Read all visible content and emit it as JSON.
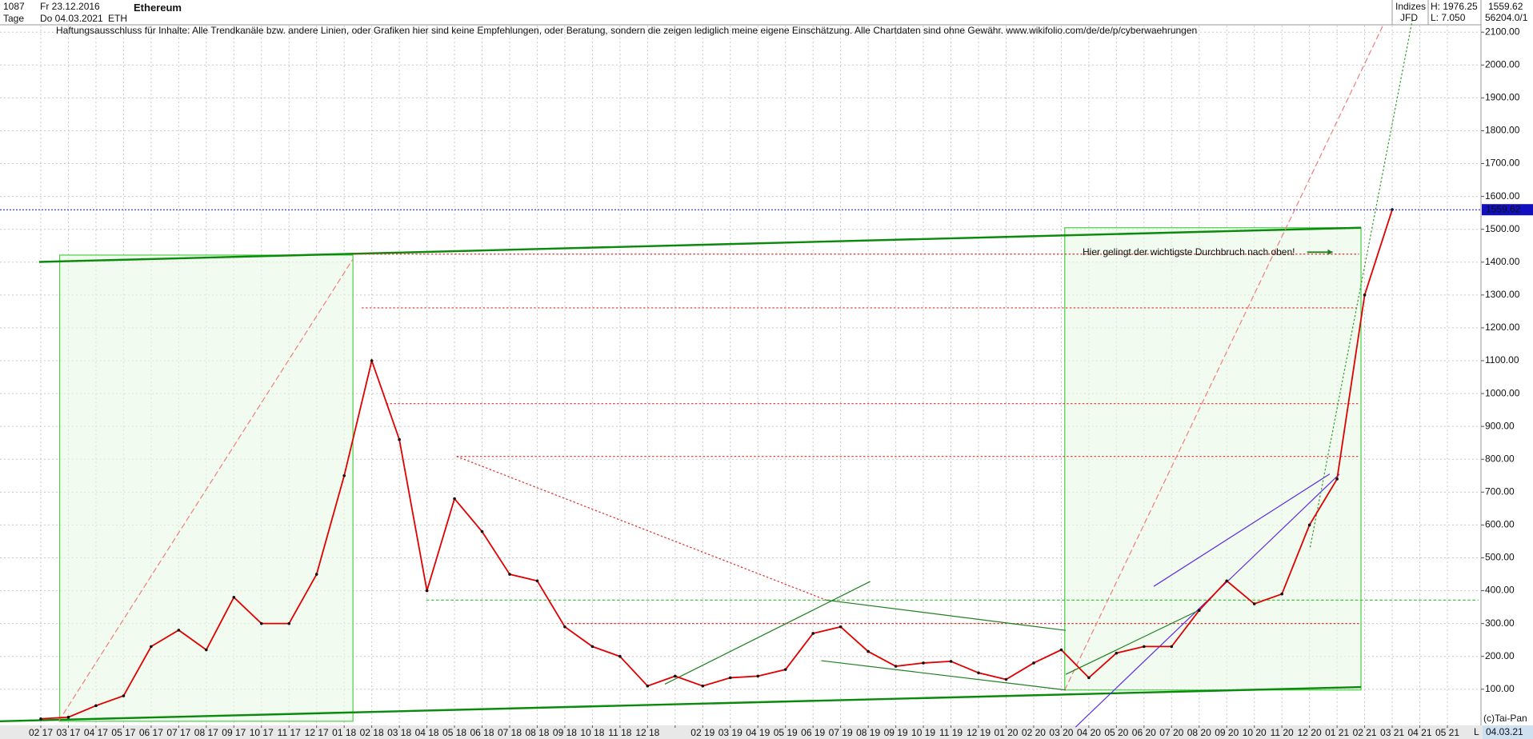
{
  "header": {
    "bars": "1087",
    "start_date": "Fr 23.12.2016",
    "timeframe": "Tage",
    "end_date": "Do 04.03.2021",
    "symbol": "ETH",
    "source": "Indizes",
    "broker": "JFD",
    "high": "H: 1976.25",
    "low": "L: 7.050",
    "last": "1559.62",
    "volume": "56204.0/1",
    "disclaimer": "Haftungsausschluss für Inhalte: Alle Trendkanäle bzw. andere Linien, oder Grafiken hier sind keine Empfehlungen, oder Beratung, sondern die zeigen lediglich meine eigene Einschätzung. Alle Chartdaten sind ohne Gewähr.  www.wikifolio.com/de/de/p/cyberwaehrungen"
  },
  "chart_data": {
    "type": "line",
    "title": "Ethereum",
    "categories": [
      "02 17",
      "03 17",
      "04 17",
      "05 17",
      "06 17",
      "07 17",
      "08 17",
      "09 17",
      "10 17",
      "11 17",
      "12 17",
      "01 18",
      "02 18",
      "03 18",
      "04 18",
      "05 18",
      "06 18",
      "07 18",
      "08 18",
      "09 18",
      "10 18",
      "11 18",
      "12 18",
      null,
      "02 19",
      "03 19",
      "04 19",
      "05 19",
      "06 19",
      "07 19",
      "08 19",
      "09 19",
      "10 19",
      "11 19",
      "12 19",
      "01 20",
      "02 20",
      "03 20",
      "04 20",
      "05 20",
      "06 20",
      "07 20",
      "08 20",
      "09 20",
      "10 20",
      "11 20",
      "12 20",
      "01 21",
      "02 21",
      "03 21",
      "04 21",
      "05 21"
    ],
    "values": [
      10,
      15,
      50,
      80,
      230,
      280,
      220,
      380,
      300,
      300,
      450,
      750,
      1100,
      860,
      400,
      680,
      580,
      450,
      430,
      290,
      230,
      200,
      110,
      140,
      110,
      135,
      140,
      160,
      270,
      290,
      215,
      170,
      180,
      185,
      150,
      130,
      180,
      220,
      135,
      210,
      230,
      230,
      340,
      430,
      360,
      390,
      600,
      740,
      1300,
      1560,
      null,
      null
    ],
    "color": "#e00000",
    "ylim": [
      -10,
      2120
    ],
    "yticks": [
      {
        "value": 100,
        "label": "100.00"
      },
      {
        "value": 200,
        "label": "200.00"
      },
      {
        "value": 300,
        "label": "300.00"
      },
      {
        "value": 400,
        "label": "400.00"
      },
      {
        "value": 500,
        "label": "500.00"
      },
      {
        "value": 600,
        "label": "600.00"
      },
      {
        "value": 700,
        "label": "700.00"
      },
      {
        "value": 800,
        "label": "800.00"
      },
      {
        "value": 900,
        "label": "900.00"
      },
      {
        "value": 1000,
        "label": "1000.00"
      },
      {
        "value": 1100,
        "label": "1100.00"
      },
      {
        "value": 1200,
        "label": "1200.00"
      },
      {
        "value": 1300,
        "label": "1300.00"
      },
      {
        "value": 1400,
        "label": "1400.00"
      },
      {
        "value": 1500,
        "label": "1500.00"
      },
      {
        "value": 1600,
        "label": "1600.00"
      },
      {
        "value": 1700,
        "label": "1700.00"
      },
      {
        "value": 1800,
        "label": "1800.00"
      },
      {
        "value": 1900,
        "label": "1900.00"
      },
      {
        "value": 2000,
        "label": "2000.00"
      },
      {
        "value": 2100,
        "label": "2100.00"
      }
    ],
    "grid": true,
    "current_price": 1559.62,
    "annotation": "Hier gelingt der wichtigste Durchbruch nach oben!",
    "copyright": "(c)Tai-Pan",
    "cursor_date": "04.03.21",
    "scale_mode": "L"
  }
}
